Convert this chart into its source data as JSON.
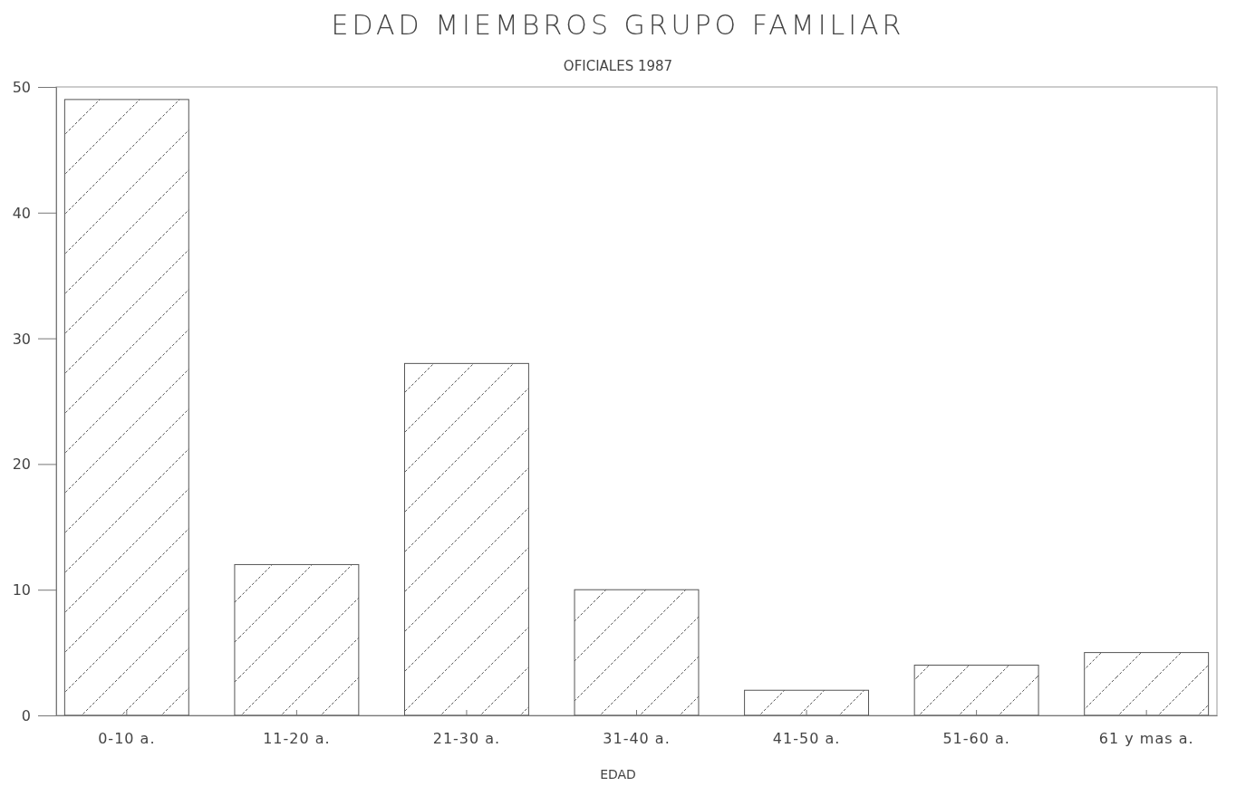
{
  "chart_data": {
    "type": "bar",
    "title": "EDAD MIEMBROS GRUPO FAMILIAR",
    "subtitle": "OFICIALES 1987",
    "xlabel": "EDAD",
    "categories": [
      "0-10 a.",
      "11-20 a.",
      "21-30 a.",
      "31-40 a.",
      "41-50 a.",
      "51-60 a.",
      "61 y mas a."
    ],
    "values": [
      49,
      12,
      28,
      10,
      2,
      4,
      5
    ],
    "color": "#555555",
    "ylim": [
      0,
      50
    ],
    "yticks": [
      0,
      10,
      20,
      30,
      40,
      50
    ],
    "grid": false
  }
}
